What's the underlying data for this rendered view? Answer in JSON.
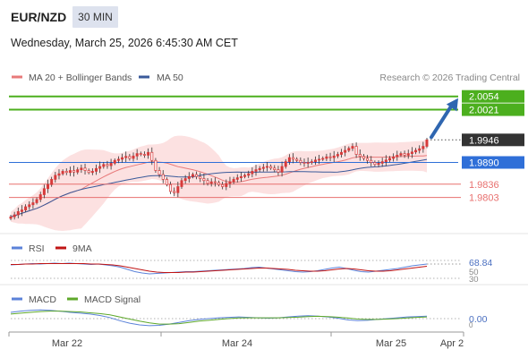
{
  "header": {
    "pair": "EUR/NZD",
    "timeframe": "30 MIN",
    "timestamp": "Wednesday, March 25, 2026 6:45:30 AM CET"
  },
  "legend": {
    "bollinger": "MA 20 + Bollinger Bands",
    "ma50": "MA 50",
    "copyright": "Research © 2026 Trading Central",
    "rsi": "RSI",
    "rsi_ma": "9MA",
    "macd": "MACD",
    "macd_signal": "MACD Signal"
  },
  "colors": {
    "candle": "#d73a3a",
    "wick": "#333333",
    "ma20": "#e87a7a",
    "band": "#fbd9d9",
    "ma50": "#3a5a9a",
    "resistance": "#4caf1e",
    "pivot": "#2f6fd8",
    "support": "#e8706f",
    "arrow": "#2f66b0",
    "rsi": "#5b82d9",
    "rsi_ma": "#c01414",
    "macd": "#5b82d9",
    "macd_signal": "#5ea82a",
    "last_price": "#333333"
  },
  "chart_data": [
    {
      "type": "candlestick",
      "ylim": [
        1.972,
        2.008
      ],
      "x_ticks": [
        "Mar 22",
        "Mar 24",
        "Mar 25",
        "Apr 2"
      ],
      "series": [
        {
          "close": [
            1.9755,
            1.976,
            1.9768,
            1.9772,
            1.978,
            1.9785,
            1.979,
            1.9798,
            1.981,
            1.9825,
            1.9835,
            1.9848,
            1.9858,
            1.9862,
            1.9868,
            1.9865,
            1.987,
            1.9866,
            1.9872,
            1.9876,
            1.987,
            1.9865,
            1.9868,
            1.9875,
            1.988,
            1.9885,
            1.9882,
            1.9888,
            1.9895,
            1.9898,
            1.9902,
            1.9905,
            1.99,
            1.9906,
            1.9912,
            1.991,
            1.9908,
            1.9915,
            1.9895,
            1.987,
            1.986,
            1.9848,
            1.9835,
            1.9818,
            1.9815,
            1.983,
            1.9845,
            1.985,
            1.9855,
            1.986,
            1.9855,
            1.985,
            1.9845,
            1.9838,
            1.9842,
            1.984,
            1.9835,
            1.983,
            1.9838,
            1.9842,
            1.9848,
            1.9852,
            1.9855,
            1.9858,
            1.9862,
            1.9868,
            1.9872,
            1.9875,
            1.9878,
            1.988,
            1.9876,
            1.9872,
            1.9866,
            1.988,
            1.9892,
            1.9902,
            1.9898,
            1.9895,
            1.989,
            1.9888,
            1.989,
            1.9892,
            1.9896,
            1.9898,
            1.99,
            1.9904,
            1.9902,
            1.9906,
            1.991,
            1.9915,
            1.992,
            1.9925,
            1.993,
            1.991,
            1.9905,
            1.99,
            1.9895,
            1.989,
            1.9885,
            1.9888,
            1.9892,
            1.9896,
            1.99,
            1.9904,
            1.9908,
            1.9912,
            1.9908,
            1.9912,
            1.9916,
            1.992,
            1.9924,
            1.993,
            1.9946
          ]
        }
      ],
      "levels": [
        {
          "label": "2.0054",
          "value": 2.0054,
          "kind": "resistance"
        },
        {
          "label": "2.0021",
          "value": 2.0021,
          "kind": "resistance"
        },
        {
          "label": "1.9946",
          "value": 1.9946,
          "kind": "last"
        },
        {
          "label": "1.9890",
          "value": 1.989,
          "kind": "pivot"
        },
        {
          "label": "1.9836",
          "value": 1.9836,
          "kind": "support"
        },
        {
          "label": "1.9803",
          "value": 1.9803,
          "kind": "support"
        }
      ]
    },
    {
      "type": "line",
      "name": "RSI",
      "ylim": [
        20,
        80
      ],
      "ticks": [
        "68.84",
        "50",
        "30"
      ],
      "series": [
        {
          "name": "RSI",
          "values": [
            60,
            61,
            62,
            63,
            62,
            63,
            64,
            63,
            64,
            63,
            62,
            61,
            62,
            60,
            58,
            55,
            50,
            45,
            42,
            40,
            41,
            42,
            43,
            44,
            45,
            45,
            46,
            47,
            48,
            49,
            50,
            51,
            52,
            54,
            55,
            53,
            51,
            49,
            47,
            45,
            44,
            45,
            47,
            50,
            53,
            55,
            52,
            48,
            45,
            44,
            46,
            48,
            50,
            52,
            55,
            58,
            60,
            62
          ]
        },
        {
          "name": "9MA",
          "values": [
            61,
            61,
            62,
            62,
            63,
            63,
            63,
            63,
            63,
            63,
            63,
            62,
            62,
            61,
            60,
            58,
            55,
            52,
            49,
            46,
            44,
            43,
            43,
            43,
            44,
            44,
            45,
            46,
            47,
            48,
            49,
            50,
            51,
            52,
            53,
            53,
            52,
            51,
            50,
            48,
            47,
            46,
            46,
            47,
            49,
            51,
            52,
            51,
            49,
            47,
            46,
            46,
            47,
            49,
            51,
            53,
            55,
            57
          ]
        }
      ]
    },
    {
      "type": "line",
      "name": "MACD",
      "ylim": [
        -0.006,
        0.006
      ],
      "ticks": [
        "0.00",
        "0"
      ],
      "series": [
        {
          "name": "MACD",
          "values": [
            0.003,
            0.0036,
            0.004,
            0.0042,
            0.004,
            0.0035,
            0.003,
            0.0026,
            0.0022,
            0.0015,
            0.0005,
            -0.001,
            -0.0022,
            -0.003,
            -0.0034,
            -0.0032,
            -0.0026,
            -0.0018,
            -0.001,
            -0.0004,
            0.0,
            0.0004,
            0.0006,
            0.0008,
            0.0006,
            0.0004,
            0.0002,
            0.0004,
            0.0008,
            0.0012,
            0.0014,
            0.0012,
            0.0008,
            0.0002,
            -0.0006,
            -0.001,
            -0.0008,
            -0.0004,
            0.0,
            0.0004,
            0.0008,
            0.001,
            0.0012
          ]
        },
        {
          "name": "MACD Signal",
          "values": [
            0.0022,
            0.0026,
            0.003,
            0.0034,
            0.0036,
            0.0036,
            0.0034,
            0.0032,
            0.0028,
            0.0024,
            0.0018,
            0.0008,
            -0.0002,
            -0.0012,
            -0.002,
            -0.0026,
            -0.0026,
            -0.0024,
            -0.0018,
            -0.0012,
            -0.0008,
            -0.0004,
            0.0,
            0.0003,
            0.0004,
            0.0004,
            0.0004,
            0.0004,
            0.0005,
            0.0007,
            0.001,
            0.0011,
            0.001,
            0.0007,
            0.0003,
            -0.0002,
            -0.0004,
            -0.0004,
            -0.0002,
            0.0,
            0.0003,
            0.0006,
            0.0008
          ]
        }
      ]
    }
  ]
}
